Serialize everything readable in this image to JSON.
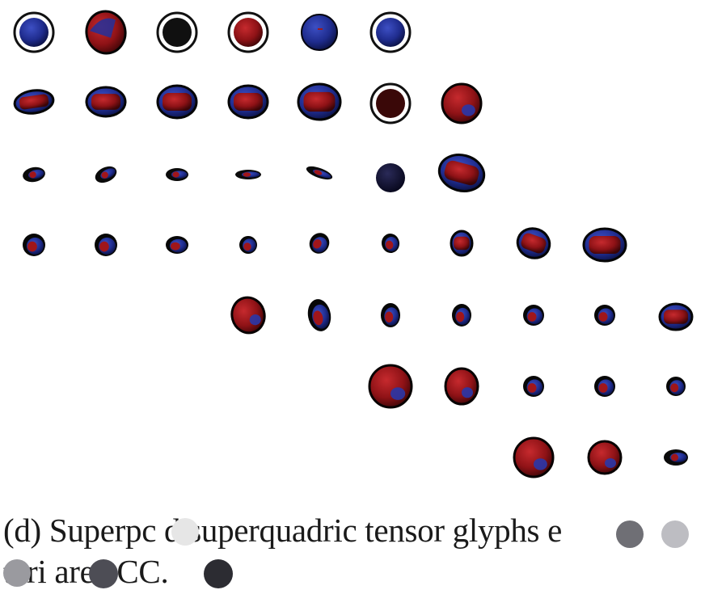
{
  "caption": {
    "line1": "(d) Superpc   d superquadric tensor glyphs   e",
    "line2": "  teri   area  CC."
  },
  "colors": {
    "positive": "#9a1418",
    "negative": "#23309a",
    "dark": "#0f0f2e",
    "outline": "#0a0a0a"
  },
  "glyph_kinds": [
    "ring-blue",
    "blob-mixed",
    "ring-black",
    "ring-red",
    "sphere-blue",
    "disc-flat",
    "ring-darkred",
    "sphere-red",
    "small-rod",
    "dark-disk",
    "small-blob"
  ]
}
